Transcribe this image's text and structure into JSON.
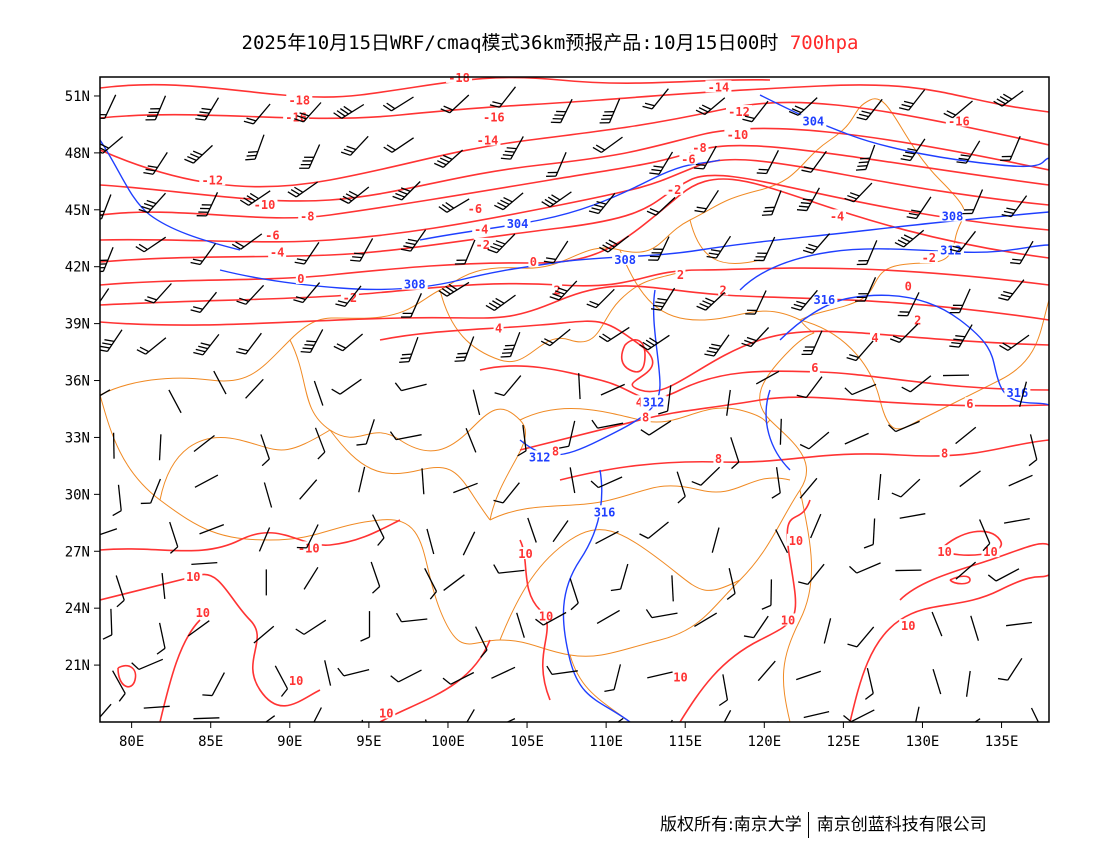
{
  "title": {
    "text": "2025年10月15日WRF/cmaq模式36km预报产品:10月15日00时",
    "level": "700hpa"
  },
  "footer": {
    "left": "版权所有:南京大学",
    "right": "南京创蓝科技有限公司"
  },
  "colors": {
    "temperature": "#ff3333",
    "height": "#1f3fff",
    "border": "#f08a24",
    "barb": "#000000"
  },
  "map": {
    "lon_range": [
      78,
      138
    ],
    "lat_range": [
      18,
      52
    ],
    "x_ticks": [
      {
        "v": 80,
        "label": "80E"
      },
      {
        "v": 85,
        "label": "85E"
      },
      {
        "v": 90,
        "label": "90E"
      },
      {
        "v": 95,
        "label": "95E"
      },
      {
        "v": 100,
        "label": "100E"
      },
      {
        "v": 105,
        "label": "105E"
      },
      {
        "v": 110,
        "label": "110E"
      },
      {
        "v": 115,
        "label": "115E"
      },
      {
        "v": 120,
        "label": "120E"
      },
      {
        "v": 125,
        "label": "125E"
      },
      {
        "v": 130,
        "label": "130E"
      },
      {
        "v": 135,
        "label": "135E"
      }
    ],
    "y_ticks": [
      {
        "v": 51,
        "label": "51N"
      },
      {
        "v": 48,
        "label": "48N"
      },
      {
        "v": 45,
        "label": "45N"
      },
      {
        "v": 42,
        "label": "42N"
      },
      {
        "v": 39,
        "label": "39N"
      },
      {
        "v": 36,
        "label": "36N"
      },
      {
        "v": 33,
        "label": "33N"
      },
      {
        "v": 30,
        "label": "30N"
      },
      {
        "v": 27,
        "label": "27N"
      },
      {
        "v": 24,
        "label": "24N"
      },
      {
        "v": 21,
        "label": "21N"
      }
    ],
    "temperature_labels": [
      {
        "t": "-18",
        "lon": 90.6,
        "lat": 50.7
      },
      {
        "t": "-16",
        "lon": 90.4,
        "lat": 49.8
      },
      {
        "t": "-18",
        "lon": 100.7,
        "lat": 51.9
      },
      {
        "t": "-16",
        "lon": 102.9,
        "lat": 49.8
      },
      {
        "t": "-14",
        "lon": 102.5,
        "lat": 48.6
      },
      {
        "t": "-14",
        "lon": 117.1,
        "lat": 51.4
      },
      {
        "t": "-12",
        "lon": 118.4,
        "lat": 50.1
      },
      {
        "t": "-10",
        "lon": 118.3,
        "lat": 48.9
      },
      {
        "t": "-8",
        "lon": 115.9,
        "lat": 48.2
      },
      {
        "t": "-6",
        "lon": 115.2,
        "lat": 47.6
      },
      {
        "t": "-2",
        "lon": 114.3,
        "lat": 46.0
      },
      {
        "t": "-16",
        "lon": 132.3,
        "lat": 49.6
      },
      {
        "t": "-12",
        "lon": 85.1,
        "lat": 46.5
      },
      {
        "t": "-10",
        "lon": 88.4,
        "lat": 45.2
      },
      {
        "t": "-8",
        "lon": 91.1,
        "lat": 44.6
      },
      {
        "t": "-6",
        "lon": 88.9,
        "lat": 43.6
      },
      {
        "t": "-4",
        "lon": 89.2,
        "lat": 42.7
      },
      {
        "t": "0",
        "lon": 90.7,
        "lat": 41.3
      },
      {
        "t": "-2",
        "lon": 93.8,
        "lat": 40.3
      },
      {
        "t": "-6",
        "lon": 101.7,
        "lat": 45.0
      },
      {
        "t": "-4",
        "lon": 102.1,
        "lat": 43.9
      },
      {
        "t": "-2",
        "lon": 102.2,
        "lat": 43.1
      },
      {
        "t": "0",
        "lon": 105.4,
        "lat": 42.2
      },
      {
        "t": "2",
        "lon": 106.9,
        "lat": 40.7
      },
      {
        "t": "2",
        "lon": 114.7,
        "lat": 41.5
      },
      {
        "t": "2",
        "lon": 117.4,
        "lat": 40.7
      },
      {
        "t": "-4",
        "lon": 124.6,
        "lat": 44.6
      },
      {
        "t": "-2",
        "lon": 130.4,
        "lat": 42.4
      },
      {
        "t": "0",
        "lon": 129.1,
        "lat": 40.9
      },
      {
        "t": "2",
        "lon": 129.7,
        "lat": 39.1
      },
      {
        "t": "4",
        "lon": 127.0,
        "lat": 38.2
      },
      {
        "t": "4",
        "lon": 103.2,
        "lat": 38.7
      },
      {
        "t": "6",
        "lon": 123.2,
        "lat": 36.6
      },
      {
        "t": "6",
        "lon": 133.0,
        "lat": 34.7
      },
      {
        "t": "4",
        "lon": 112.1,
        "lat": 34.8
      },
      {
        "t": "8",
        "lon": 112.5,
        "lat": 34.0
      },
      {
        "t": "8",
        "lon": 106.8,
        "lat": 32.2
      },
      {
        "t": "8",
        "lon": 117.1,
        "lat": 31.8
      },
      {
        "t": "8",
        "lon": 131.4,
        "lat": 32.1
      },
      {
        "t": "-10",
        "lon": 91.2,
        "lat": 27.1
      },
      {
        "t": "10",
        "lon": 83.9,
        "lat": 25.6
      },
      {
        "t": "10",
        "lon": 84.5,
        "lat": 23.7
      },
      {
        "t": "10",
        "lon": 90.4,
        "lat": 20.1
      },
      {
        "t": "10",
        "lon": 96.1,
        "lat": 18.4
      },
      {
        "t": "10",
        "lon": 104.9,
        "lat": 26.8
      },
      {
        "t": "10",
        "lon": 106.2,
        "lat": 23.5
      },
      {
        "t": "10",
        "lon": 114.7,
        "lat": 20.3
      },
      {
        "t": "10",
        "lon": 121.5,
        "lat": 23.3
      },
      {
        "t": "10",
        "lon": 122.0,
        "lat": 27.5
      },
      {
        "t": "10",
        "lon": 131.4,
        "lat": 26.9
      },
      {
        "t": "10",
        "lon": 134.3,
        "lat": 26.9
      },
      {
        "t": "10",
        "lon": 129.1,
        "lat": 23.0
      }
    ],
    "height_labels": [
      {
        "t": "304",
        "lon": 104.4,
        "lat": 44.2
      },
      {
        "t": "304",
        "lon": 123.1,
        "lat": 49.6
      },
      {
        "t": "308",
        "lon": 111.2,
        "lat": 42.3
      },
      {
        "t": "308",
        "lon": 97.9,
        "lat": 41.0
      },
      {
        "t": "308",
        "lon": 131.9,
        "lat": 44.6
      },
      {
        "t": "312",
        "lon": 131.8,
        "lat": 42.8
      },
      {
        "t": "316",
        "lon": 123.8,
        "lat": 40.2
      },
      {
        "t": "316",
        "lon": 136.0,
        "lat": 35.3
      },
      {
        "t": "312",
        "lon": 113.0,
        "lat": 34.8
      },
      {
        "t": "312",
        "lon": 105.8,
        "lat": 31.9
      },
      {
        "t": "316",
        "lon": 109.9,
        "lat": 29.0
      }
    ]
  }
}
